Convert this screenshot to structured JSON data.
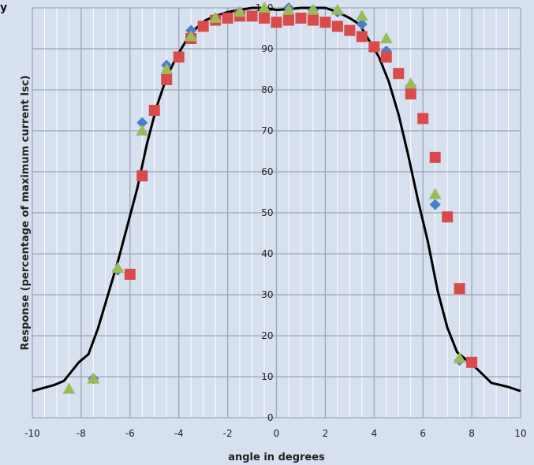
{
  "chart_data": {
    "type": "scatter",
    "title": "",
    "xlabel": "angle in degrees",
    "ylabel": "Response (percentage of maximum current Isc)",
    "xlim": [
      -10,
      10
    ],
    "ylim": [
      0,
      100
    ],
    "x_ticks": [
      "-10",
      "-8",
      "-6",
      "-4",
      "-2",
      "0",
      "2",
      "4",
      "6",
      "8",
      "10"
    ],
    "y_ticks": [
      "0",
      "10",
      "20",
      "30",
      "40",
      "50",
      "60",
      "70",
      "80",
      "90",
      "100"
    ],
    "grid": true,
    "legend": "none",
    "colors": {
      "background": "#d7e0ee",
      "major_grid": "#9aa6b8",
      "minor_grid": "#ffffff",
      "line": "#000000",
      "blue": "#4a7ec6",
      "red": "#d94a4a",
      "green": "#9bbb59"
    },
    "series": [
      {
        "kind": "line",
        "color_key": "line",
        "points": [
          [
            -10,
            6.5
          ],
          [
            -9.1,
            8
          ],
          [
            -8.7,
            9
          ],
          [
            -8.1,
            13.5
          ],
          [
            -7.7,
            15.5
          ],
          [
            -7.3,
            22
          ],
          [
            -6.9,
            30
          ],
          [
            -6.5,
            38
          ],
          [
            -6.1,
            47
          ],
          [
            -5.7,
            56
          ],
          [
            -5.3,
            67
          ],
          [
            -4.9,
            76
          ],
          [
            -4.5,
            83
          ],
          [
            -4.1,
            88
          ],
          [
            -3.7,
            92
          ],
          [
            -3.3,
            95
          ],
          [
            -2.9,
            97
          ],
          [
            -2.5,
            98
          ],
          [
            -2.0,
            99
          ],
          [
            -1.5,
            99.5
          ],
          [
            -1.0,
            100
          ],
          [
            -0.5,
            100
          ],
          [
            0,
            99.5
          ],
          [
            0.5,
            99.7
          ],
          [
            1.0,
            100
          ],
          [
            1.5,
            100
          ],
          [
            2.0,
            100
          ],
          [
            2.5,
            99
          ],
          [
            3.0,
            97.5
          ],
          [
            3.4,
            96
          ],
          [
            3.8,
            92
          ],
          [
            4.2,
            88
          ],
          [
            4.6,
            82
          ],
          [
            5.0,
            74
          ],
          [
            5.4,
            64
          ],
          [
            5.8,
            53
          ],
          [
            6.2,
            43
          ],
          [
            6.6,
            31
          ],
          [
            7.0,
            22
          ],
          [
            7.4,
            16
          ],
          [
            7.8,
            14
          ],
          [
            8.2,
            12
          ],
          [
            8.8,
            8.5
          ],
          [
            9.5,
            7.5
          ],
          [
            10,
            6.5
          ]
        ]
      },
      {
        "kind": "marker",
        "marker": "diamond",
        "color_key": "blue",
        "points": [
          [
            -7.5,
            9.5
          ],
          [
            -6.5,
            36
          ],
          [
            -5.5,
            72
          ],
          [
            -4.5,
            86
          ],
          [
            -3.5,
            94.5
          ],
          [
            -2.5,
            97.5
          ],
          [
            -1.5,
            99
          ],
          [
            -0.5,
            99.5
          ],
          [
            0.5,
            100
          ],
          [
            1.5,
            99.5
          ],
          [
            2.5,
            99
          ],
          [
            3.5,
            96
          ],
          [
            4.5,
            89.5
          ],
          [
            5.5,
            81
          ],
          [
            6.5,
            52
          ],
          [
            7.5,
            14
          ]
        ]
      },
      {
        "kind": "marker",
        "marker": "square",
        "color_key": "red",
        "points": [
          [
            -6,
            35
          ],
          [
            -5.5,
            59
          ],
          [
            -5,
            75
          ],
          [
            -4.5,
            82.5
          ],
          [
            -4,
            88
          ],
          [
            -3.5,
            92.5
          ],
          [
            -3,
            95.5
          ],
          [
            -2.5,
            97
          ],
          [
            -2,
            97.5
          ],
          [
            -1.5,
            98
          ],
          [
            -1,
            98
          ],
          [
            -0.5,
            97.5
          ],
          [
            0,
            96.5
          ],
          [
            0.5,
            97
          ],
          [
            1,
            97.5
          ],
          [
            1.5,
            97
          ],
          [
            2,
            96.5
          ],
          [
            2.5,
            95.5
          ],
          [
            3,
            94.5
          ],
          [
            3.5,
            93
          ],
          [
            4,
            90.5
          ],
          [
            4.5,
            88
          ],
          [
            5,
            84
          ],
          [
            5.5,
            79
          ],
          [
            6,
            73
          ],
          [
            6.5,
            63.5
          ],
          [
            7,
            49
          ],
          [
            7.5,
            31.5
          ],
          [
            8,
            13.5
          ]
        ]
      },
      {
        "kind": "marker",
        "marker": "triangle",
        "color_key": "green",
        "points": [
          [
            -8.5,
            7
          ],
          [
            -7.5,
            9.5
          ],
          [
            -6.5,
            36.5
          ],
          [
            -5.5,
            70
          ],
          [
            -4.5,
            85
          ],
          [
            -3.5,
            93
          ],
          [
            -2.5,
            97.5
          ],
          [
            -1.5,
            99
          ],
          [
            -0.5,
            100
          ],
          [
            0.5,
            99.5
          ],
          [
            1.5,
            99.5
          ],
          [
            2.5,
            99.5
          ],
          [
            3.5,
            98
          ],
          [
            4.5,
            92.5
          ],
          [
            5.5,
            81.5
          ],
          [
            6.5,
            54.5
          ],
          [
            7.5,
            14.5
          ]
        ]
      }
    ]
  },
  "corner_text": "y"
}
